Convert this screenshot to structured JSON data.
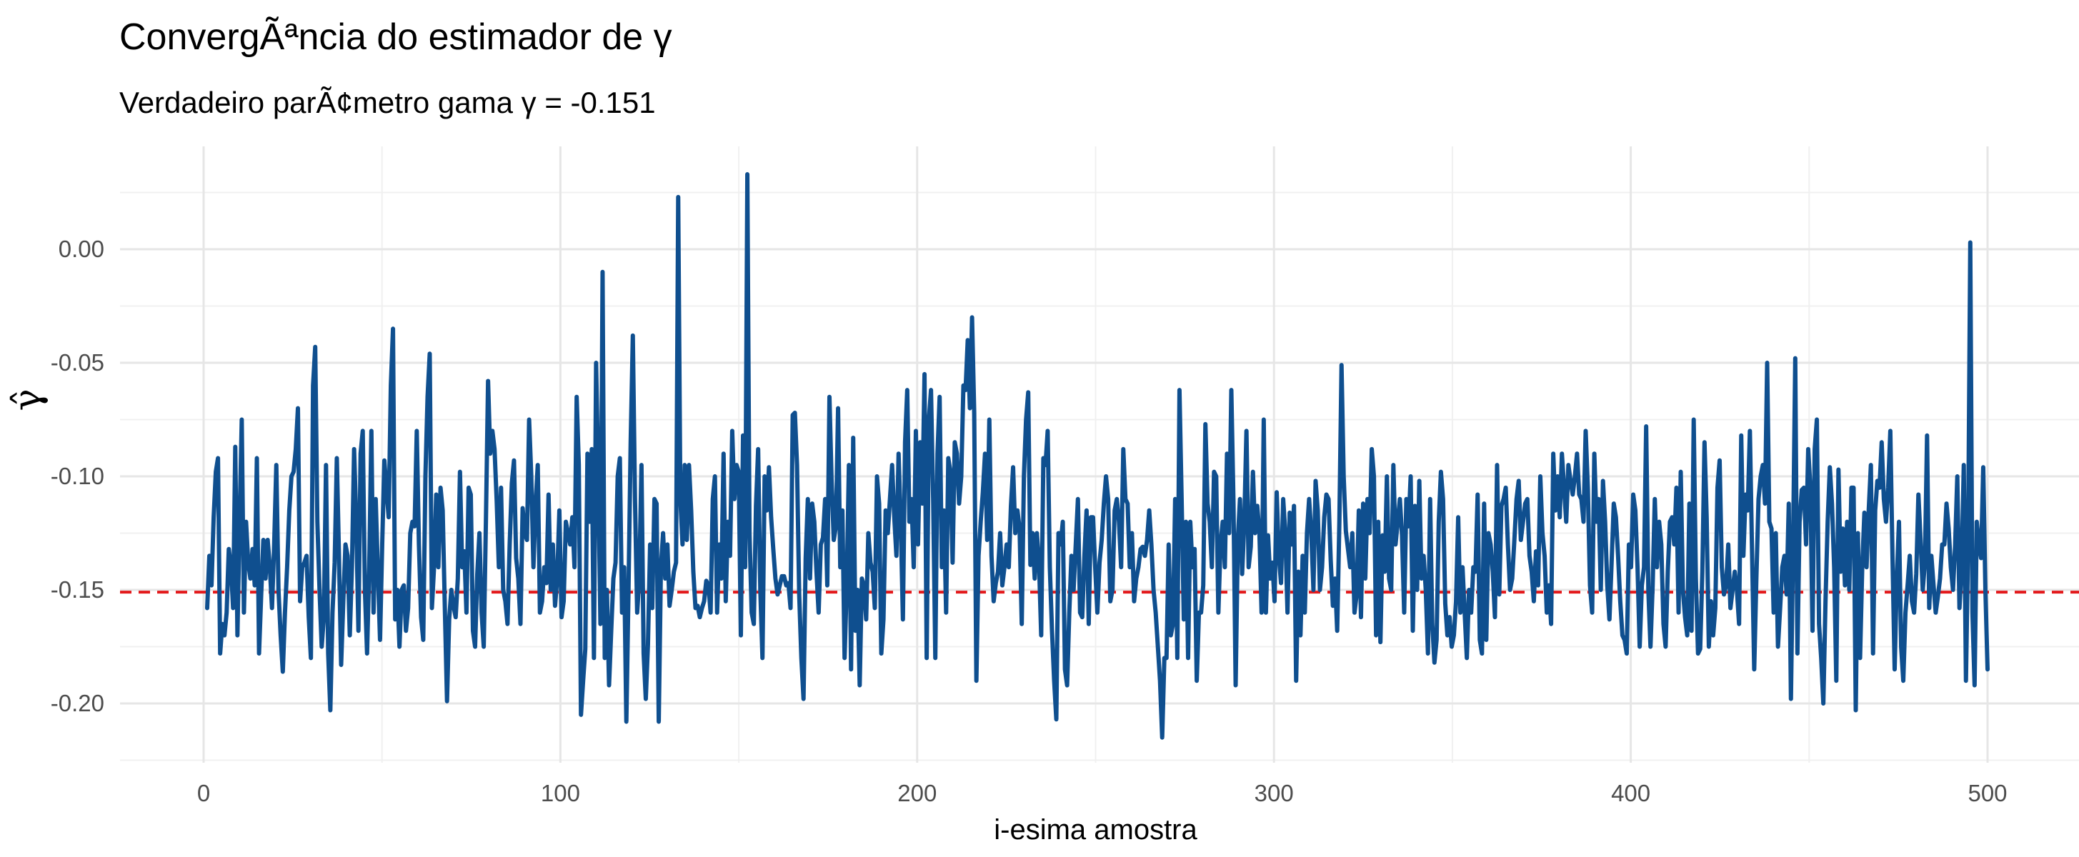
{
  "title": "ConvergÃªncia do estimador de γ",
  "subtitle": "Verdadeiro parÃ¢metro gama γ = -0.151",
  "chart_data": {
    "type": "line",
    "title": "ConvergÃªncia do estimador de γ",
    "subtitle": "Verdadeiro parÃ¢metro gama γ = -0.151",
    "xlabel": "i-esima amostra",
    "ylabel": "γ̂",
    "xlim": [
      -24,
      524
    ],
    "ylim": [
      -0.225,
      0.045
    ],
    "x_ticks": [
      0,
      100,
      200,
      300,
      400,
      500
    ],
    "y_ticks": [
      0.0,
      -0.05,
      -0.1,
      -0.15,
      -0.2
    ],
    "y_tick_labels": [
      "0.00",
      "-0.05",
      "-0.10",
      "-0.15",
      "-0.20"
    ],
    "grid": true,
    "series_color": "#0f4f8f",
    "reference_line": {
      "y": -0.151,
      "style": "dashed",
      "color": "#e31a1c"
    },
    "x_start": 1,
    "values": [
      -0.158,
      -0.135,
      -0.148,
      -0.118,
      -0.098,
      -0.092,
      -0.178,
      -0.165,
      -0.17,
      -0.16,
      -0.132,
      -0.14,
      -0.158,
      -0.087,
      -0.17,
      -0.12,
      -0.075,
      -0.16,
      -0.12,
      -0.138,
      -0.145,
      -0.132,
      -0.148,
      -0.092,
      -0.178,
      -0.152,
      -0.128,
      -0.145,
      -0.128,
      -0.14,
      -0.158,
      -0.13,
      -0.095,
      -0.15,
      -0.17,
      -0.186,
      -0.16,
      -0.14,
      -0.115,
      -0.1,
      -0.098,
      -0.088,
      -0.07,
      -0.155,
      -0.14,
      -0.138,
      -0.135,
      -0.162,
      -0.18,
      -0.06,
      -0.043,
      -0.12,
      -0.15,
      -0.175,
      -0.162,
      -0.095,
      -0.178,
      -0.203,
      -0.16,
      -0.138,
      -0.092,
      -0.135,
      -0.183,
      -0.155,
      -0.13,
      -0.135,
      -0.17,
      -0.14,
      -0.088,
      -0.12,
      -0.168,
      -0.09,
      -0.08,
      -0.15,
      -0.178,
      -0.14,
      -0.08,
      -0.16,
      -0.11,
      -0.142,
      -0.172,
      -0.13,
      -0.093,
      -0.106,
      -0.118,
      -0.06,
      -0.035,
      -0.163,
      -0.15,
      -0.175,
      -0.15,
      -0.148,
      -0.168,
      -0.158,
      -0.125,
      -0.12,
      -0.122,
      -0.08,
      -0.13,
      -0.162,
      -0.172,
      -0.1,
      -0.065,
      -0.046,
      -0.158,
      -0.14,
      -0.108,
      -0.14,
      -0.105,
      -0.115,
      -0.158,
      -0.199,
      -0.163,
      -0.15,
      -0.157,
      -0.162,
      -0.145,
      -0.098,
      -0.14,
      -0.133,
      -0.16,
      -0.105,
      -0.108,
      -0.168,
      -0.175,
      -0.143,
      -0.125,
      -0.16,
      -0.175,
      -0.12,
      -0.058,
      -0.09,
      -0.08,
      -0.088,
      -0.111,
      -0.14,
      -0.105,
      -0.15,
      -0.155,
      -0.165,
      -0.13,
      -0.103,
      -0.093,
      -0.136,
      -0.145,
      -0.165,
      -0.114,
      -0.125,
      -0.128,
      -0.075,
      -0.1,
      -0.14,
      -0.112,
      -0.095,
      -0.16,
      -0.155,
      -0.14,
      -0.147,
      -0.108,
      -0.15,
      -0.13,
      -0.157,
      -0.145,
      -0.115,
      -0.162,
      -0.155,
      -0.12,
      -0.125,
      -0.13,
      -0.118,
      -0.14,
      -0.065,
      -0.095,
      -0.205,
      -0.19,
      -0.176,
      -0.09,
      -0.12,
      -0.088,
      -0.18,
      -0.05,
      -0.1,
      -0.165,
      -0.01,
      -0.18,
      -0.15,
      -0.192,
      -0.168,
      -0.145,
      -0.138,
      -0.1,
      -0.092,
      -0.16,
      -0.14,
      -0.208,
      -0.15,
      -0.085,
      -0.038,
      -0.11,
      -0.16,
      -0.145,
      -0.095,
      -0.178,
      -0.198,
      -0.174,
      -0.13,
      -0.158,
      -0.11,
      -0.112,
      -0.208,
      -0.14,
      -0.125,
      -0.145,
      -0.13,
      -0.157,
      -0.15,
      -0.142,
      -0.138,
      0.023,
      -0.11,
      -0.13,
      -0.095,
      -0.128,
      -0.095,
      -0.115,
      -0.142,
      -0.158,
      -0.157,
      -0.162,
      -0.158,
      -0.155,
      -0.146,
      -0.148,
      -0.16,
      -0.11,
      -0.1,
      -0.16,
      -0.13,
      -0.145,
      -0.09,
      -0.155,
      -0.12,
      -0.135,
      -0.08,
      -0.11,
      -0.095,
      -0.098,
      -0.17,
      -0.082,
      -0.14,
      0.033,
      -0.125,
      -0.16,
      -0.165,
      -0.113,
      -0.088,
      -0.15,
      -0.18,
      -0.1,
      -0.115,
      -0.096,
      -0.118,
      -0.132,
      -0.145,
      -0.152,
      -0.148,
      -0.144,
      -0.144,
      -0.148,
      -0.147,
      -0.158,
      -0.073,
      -0.072,
      -0.095,
      -0.152,
      -0.18,
      -0.198,
      -0.136,
      -0.11,
      -0.145,
      -0.112,
      -0.12,
      -0.142,
      -0.16,
      -0.13,
      -0.127,
      -0.11,
      -0.148,
      -0.065,
      -0.102,
      -0.128,
      -0.122,
      -0.07,
      -0.14,
      -0.115,
      -0.18,
      -0.148,
      -0.095,
      -0.185,
      -0.083,
      -0.168,
      -0.15,
      -0.192,
      -0.145,
      -0.148,
      -0.163,
      -0.125,
      -0.138,
      -0.142,
      -0.158,
      -0.1,
      -0.112,
      -0.178,
      -0.163,
      -0.115,
      -0.125,
      -0.11,
      -0.095,
      -0.118,
      -0.135,
      -0.09,
      -0.12,
      -0.163,
      -0.085,
      -0.062,
      -0.12,
      -0.11,
      -0.14,
      -0.08,
      -0.13,
      -0.085,
      -0.112,
      -0.055,
      -0.18,
      -0.075,
      -0.062,
      -0.11,
      -0.18,
      -0.09,
      -0.065,
      -0.14,
      -0.115,
      -0.16,
      -0.092,
      -0.098,
      -0.138,
      -0.085,
      -0.09,
      -0.112,
      -0.1,
      -0.06,
      -0.062,
      -0.04,
      -0.07,
      -0.03,
      -0.072,
      -0.19,
      -0.135,
      -0.12,
      -0.107,
      -0.09,
      -0.128,
      -0.075,
      -0.135,
      -0.155,
      -0.147,
      -0.142,
      -0.125,
      -0.148,
      -0.14,
      -0.13,
      -0.14,
      -0.113,
      -0.096,
      -0.125,
      -0.115,
      -0.123,
      -0.165,
      -0.1,
      -0.075,
      -0.063,
      -0.139,
      -0.125,
      -0.145,
      -0.125,
      -0.138,
      -0.17,
      -0.092,
      -0.095,
      -0.08,
      -0.14,
      -0.168,
      -0.19,
      -0.207,
      -0.125,
      -0.13,
      -0.12,
      -0.185,
      -0.192,
      -0.16,
      -0.135,
      -0.15,
      -0.13,
      -0.11,
      -0.16,
      -0.162,
      -0.135,
      -0.115,
      -0.165,
      -0.118,
      -0.118,
      -0.14,
      -0.16,
      -0.138,
      -0.128,
      -0.112,
      -0.1,
      -0.11,
      -0.155,
      -0.15,
      -0.115,
      -0.11,
      -0.12,
      -0.14,
      -0.088,
      -0.11,
      -0.112,
      -0.14,
      -0.125,
      -0.155,
      -0.145,
      -0.14,
      -0.132,
      -0.131,
      -0.135,
      -0.128,
      -0.115,
      -0.13,
      -0.15,
      -0.16,
      -0.175,
      -0.19,
      -0.215,
      -0.18,
      -0.18,
      -0.13,
      -0.17,
      -0.165,
      -0.11,
      -0.18,
      -0.062,
      -0.11,
      -0.163,
      -0.12,
      -0.18,
      -0.12,
      -0.14,
      -0.132,
      -0.19,
      -0.16,
      -0.16,
      -0.148,
      -0.077,
      -0.112,
      -0.12,
      -0.14,
      -0.098,
      -0.1,
      -0.16,
      -0.13,
      -0.12,
      -0.14,
      -0.09,
      -0.125,
      -0.062,
      -0.112,
      -0.192,
      -0.128,
      -0.11,
      -0.143,
      -0.12,
      -0.08,
      -0.14,
      -0.131,
      -0.098,
      -0.125,
      -0.113,
      -0.125,
      -0.16,
      -0.075,
      -0.16,
      -0.126,
      -0.145,
      -0.138,
      -0.155,
      -0.107,
      -0.135,
      -0.147,
      -0.11,
      -0.125,
      -0.16,
      -0.116,
      -0.13,
      -0.113,
      -0.19,
      -0.142,
      -0.17,
      -0.135,
      -0.16,
      -0.125,
      -0.11,
      -0.125,
      -0.15,
      -0.102,
      -0.115,
      -0.15,
      -0.14,
      -0.118,
      -0.108,
      -0.11,
      -0.137,
      -0.157,
      -0.145,
      -0.168,
      -0.12,
      -0.051,
      -0.1,
      -0.124,
      -0.132,
      -0.14,
      -0.125,
      -0.16,
      -0.152,
      -0.115,
      -0.162,
      -0.112,
      -0.145,
      -0.11,
      -0.125,
      -0.088,
      -0.1,
      -0.17,
      -0.12,
      -0.173,
      -0.126,
      -0.142,
      -0.1,
      -0.145,
      -0.15,
      -0.095,
      -0.13,
      -0.12,
      -0.11,
      -0.126,
      -0.16,
      -0.11,
      -0.122,
      -0.1,
      -0.168,
      -0.113,
      -0.15,
      -0.102,
      -0.145,
      -0.135,
      -0.15,
      -0.178,
      -0.11,
      -0.165,
      -0.182,
      -0.172,
      -0.12,
      -0.098,
      -0.11,
      -0.156,
      -0.17,
      -0.162,
      -0.175,
      -0.17,
      -0.155,
      -0.118,
      -0.16,
      -0.14,
      -0.16,
      -0.18,
      -0.15,
      -0.16,
      -0.14,
      -0.142,
      -0.108,
      -0.172,
      -0.178,
      -0.112,
      -0.172,
      -0.125,
      -0.13,
      -0.142,
      -0.162,
      -0.095,
      -0.152,
      -0.113,
      -0.11,
      -0.105,
      -0.13,
      -0.15,
      -0.145,
      -0.128,
      -0.11,
      -0.102,
      -0.128,
      -0.12,
      -0.112,
      -0.11,
      -0.135,
      -0.142,
      -0.155,
      -0.133,
      -0.148,
      -0.1,
      -0.125,
      -0.135,
      -0.16,
      -0.148,
      -0.165,
      -0.09,
      -0.115,
      -0.1,
      -0.118,
      -0.09,
      -0.105,
      -0.12,
      -0.095,
      -0.102,
      -0.108,
      -0.1,
      -0.09,
      -0.108,
      -0.11,
      -0.12,
      -0.08,
      -0.105,
      -0.148,
      -0.16,
      -0.09,
      -0.12,
      -0.11,
      -0.15,
      -0.102,
      -0.12,
      -0.148,
      -0.163,
      -0.138,
      -0.112,
      -0.118,
      -0.135,
      -0.155,
      -0.17,
      -0.172,
      -0.178,
      -0.13,
      -0.14,
      -0.108,
      -0.115,
      -0.14,
      -0.175,
      -0.148,
      -0.14,
      -0.078,
      -0.15,
      -0.175,
      -0.148,
      -0.11,
      -0.14,
      -0.12,
      -0.13,
      -0.165,
      -0.175,
      -0.142,
      -0.12,
      -0.118,
      -0.13,
      -0.105,
      -0.16,
      -0.098,
      -0.15,
      -0.162,
      -0.17,
      -0.112,
      -0.168,
      -0.075,
      -0.145,
      -0.178,
      -0.176,
      -0.142,
      -0.085,
      -0.118,
      -0.175,
      -0.155,
      -0.17,
      -0.158,
      -0.105,
      -0.093,
      -0.14,
      -0.152,
      -0.148,
      -0.13,
      -0.158,
      -0.15,
      -0.142,
      -0.15,
      -0.165,
      -0.082,
      -0.135,
      -0.108,
      -0.115,
      -0.08,
      -0.133,
      -0.185,
      -0.145,
      -0.11,
      -0.1,
      -0.095,
      -0.112,
      -0.05,
      -0.12,
      -0.123,
      -0.16,
      -0.125,
      -0.175,
      -0.158,
      -0.14,
      -0.135,
      -0.152,
      -0.112,
      -0.198,
      -0.13,
      -0.048,
      -0.178,
      -0.12,
      -0.106,
      -0.105,
      -0.13,
      -0.088,
      -0.105,
      -0.168,
      -0.088,
      -0.075,
      -0.165,
      -0.18,
      -0.2,
      -0.155,
      -0.12,
      -0.096,
      -0.112,
      -0.14,
      -0.19,
      -0.097,
      -0.142,
      -0.123,
      -0.148,
      -0.12,
      -0.15,
      -0.105,
      -0.105,
      -0.203,
      -0.125,
      -0.18,
      -0.14,
      -0.116,
      -0.14,
      -0.115,
      -0.095,
      -0.178,
      -0.115,
      -0.102,
      -0.105,
      -0.085,
      -0.11,
      -0.12,
      -0.105,
      -0.08,
      -0.135,
      -0.185,
      -0.145,
      -0.12,
      -0.175,
      -0.19,
      -0.16,
      -0.148,
      -0.135,
      -0.155,
      -0.16,
      -0.143,
      -0.108,
      -0.128,
      -0.15,
      -0.138,
      -0.082,
      -0.158,
      -0.135,
      -0.148,
      -0.16,
      -0.153,
      -0.145,
      -0.13,
      -0.13,
      -0.112,
      -0.123,
      -0.14,
      -0.15,
      -0.13,
      -0.1,
      -0.158,
      -0.14,
      -0.095,
      -0.19,
      -0.13,
      0.003,
      -0.16,
      -0.192,
      -0.12,
      -0.13,
      -0.136,
      -0.096,
      -0.15,
      -0.185
    ]
  }
}
